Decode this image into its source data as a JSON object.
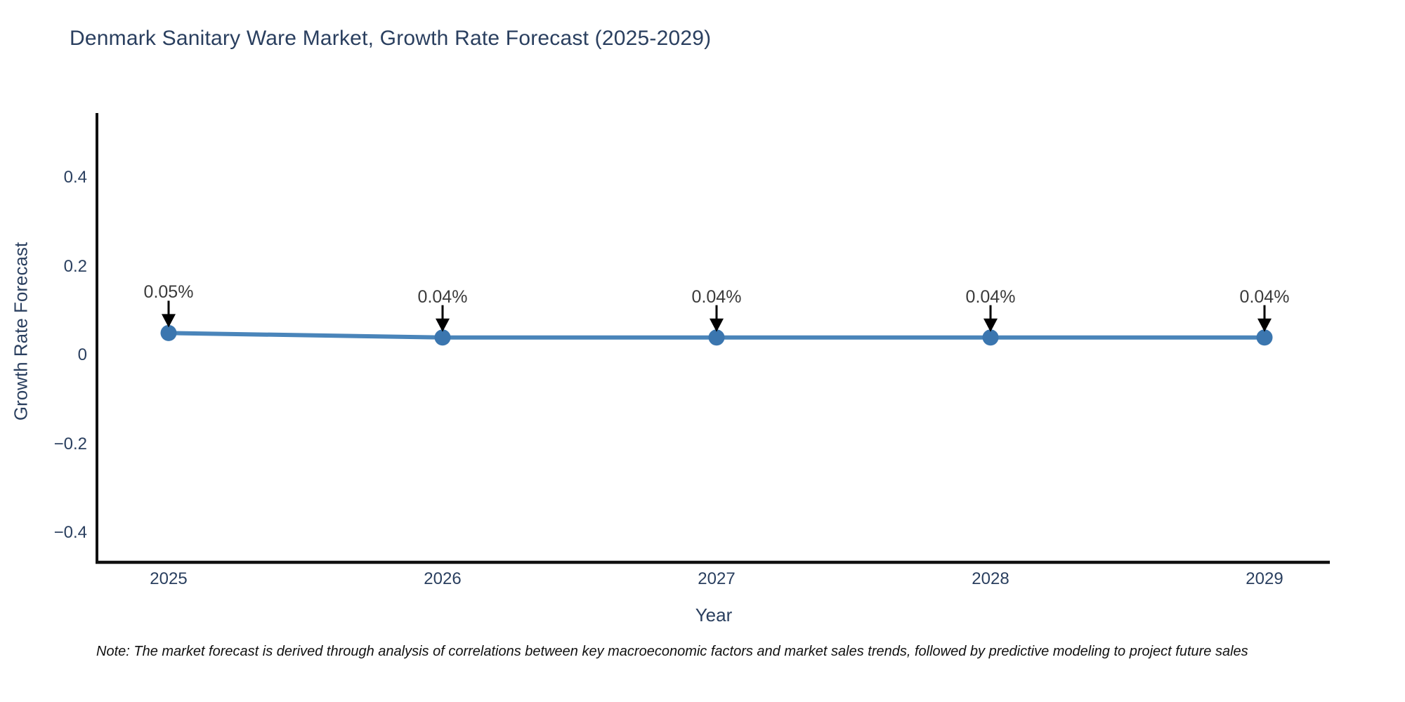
{
  "title": "Denmark Sanitary Ware Market, Growth Rate Forecast (2025-2029)",
  "note": "Note: The market forecast is derived through analysis of correlations between key macroeconomic factors and market sales trends, followed by predictive modeling to project future sales",
  "chart_data": {
    "type": "line",
    "title": "Denmark Sanitary Ware Market, Growth Rate Forecast (2025-2029)",
    "xlabel": "Year",
    "ylabel": "Growth Rate Forecast",
    "x": [
      2025,
      2026,
      2027,
      2028,
      2029
    ],
    "series": [
      {
        "name": "Growth Rate Forecast",
        "values": [
          0.05,
          0.04,
          0.04,
          0.04,
          0.04
        ],
        "point_labels": [
          "0.05%",
          "0.04%",
          "0.04%",
          "0.04%",
          "0.04%"
        ]
      }
    ],
    "y_ticks": [
      {
        "value": 0.4,
        "label": "0.4"
      },
      {
        "value": 0.2,
        "label": "0.2"
      },
      {
        "value": 0,
        "label": "0"
      },
      {
        "value": -0.2,
        "label": "−0.2"
      },
      {
        "value": -0.4,
        "label": "−0.4"
      }
    ],
    "ylim": [
      -0.46,
      0.55
    ],
    "grid": false,
    "legend_position": "none",
    "annotation_arrows": true,
    "colors": {
      "line": "#4a85ba",
      "marker": "#3b76af",
      "axis": "#101010",
      "text": "#2a3f5f",
      "annotation_text": "#3b3b3b",
      "arrow": "#000000"
    }
  }
}
